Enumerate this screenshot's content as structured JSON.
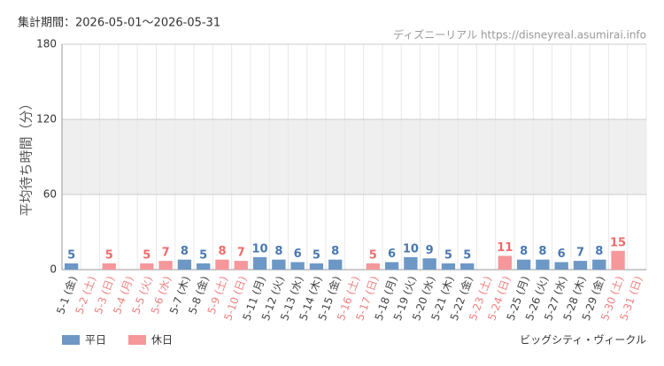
{
  "chart_data": {
    "type": "bar",
    "title": "集計期間：2026-05-01～2026-05-31",
    "source": "ディズニーリアル https://disneyreal.asumirai.info",
    "footer": "ビッグシティ・ヴィークル",
    "y_label": "平均待ち時間（分）",
    "categories": [
      "5-1 (金)",
      "5-2 (土)",
      "5-3 (日)",
      "5-4 (月)",
      "5-5 (火)",
      "5-6 (水)",
      "5-7 (木)",
      "5-8 (金)",
      "5-9 (土)",
      "5-10 (日)",
      "5-11 (月)",
      "5-12 (火)",
      "5-13 (水)",
      "5-14 (木)",
      "5-15 (金)",
      "5-16 (土)",
      "5-17 (日)",
      "5-18 (月)",
      "5-19 (火)",
      "5-20 (水)",
      "5-21 (木)",
      "5-22 (金)",
      "5-23 (土)",
      "5-24 (日)",
      "5-25 (月)",
      "5-26 (火)",
      "5-27 (水)",
      "5-28 (木)",
      "5-29 (金)",
      "5-30 (土)",
      "5-31 (日)"
    ],
    "category_label_colors": [
      "#444",
      "#f08080",
      "#f08080",
      "#f08080",
      "#f08080",
      "#f08080",
      "#444",
      "#444",
      "#f08080",
      "#f08080",
      "#444",
      "#444",
      "#444",
      "#444",
      "#444",
      "#f08080",
      "#f08080",
      "#444",
      "#444",
      "#444",
      "#444",
      "#444",
      "#f08080",
      "#f08080",
      "#444",
      "#444",
      "#444",
      "#444",
      "#444",
      "#f08080",
      "#f08080"
    ],
    "series": [
      {
        "name": "平日",
        "color": "#6d98c6",
        "label_color": "#4a78b0",
        "values": [
          5,
          null,
          null,
          null,
          null,
          null,
          8,
          5,
          null,
          null,
          10,
          8,
          6,
          5,
          8,
          null,
          null,
          6,
          10,
          9,
          5,
          5,
          null,
          null,
          8,
          8,
          6,
          7,
          8,
          null,
          null
        ]
      },
      {
        "name": "休日",
        "color": "#f5979b",
        "label_color": "#f06a6a",
        "values": [
          null,
          null,
          5,
          null,
          5,
          7,
          null,
          null,
          8,
          7,
          null,
          null,
          null,
          null,
          null,
          null,
          5,
          null,
          null,
          null,
          null,
          null,
          null,
          11,
          null,
          null,
          null,
          null,
          null,
          15,
          null
        ]
      }
    ],
    "ylim": [
      0,
      180
    ],
    "yticks": [
      0,
      60,
      120,
      180
    ],
    "grid": true,
    "shaded_range": [
      60,
      120
    ]
  }
}
